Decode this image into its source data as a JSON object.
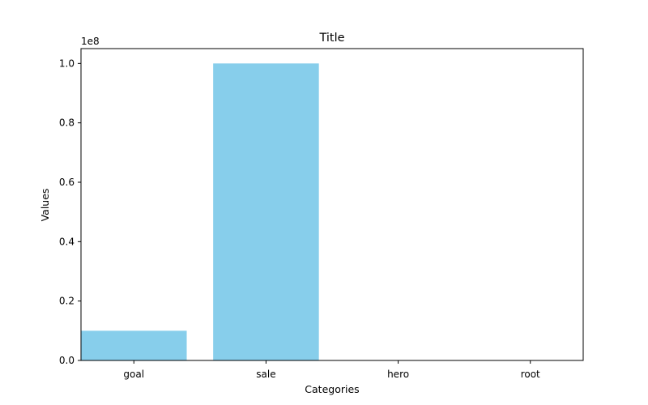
{
  "chart_data": {
    "type": "bar",
    "title": "Title",
    "xlabel": "Categories",
    "ylabel": "Values",
    "categories": [
      "goal",
      "sale",
      "hero",
      "root"
    ],
    "values": [
      10000000,
      100000000,
      10,
      10
    ],
    "ylim": [
      0,
      105000000
    ],
    "y_offset_label": "1e8",
    "y_ticks": [
      0,
      20000000,
      40000000,
      60000000,
      80000000,
      100000000
    ],
    "y_tick_labels": [
      "0.0",
      "0.2",
      "0.4",
      "0.6",
      "0.8",
      "1.0"
    ],
    "bar_color": "#87ceeb",
    "grid": false,
    "legend": "none"
  }
}
